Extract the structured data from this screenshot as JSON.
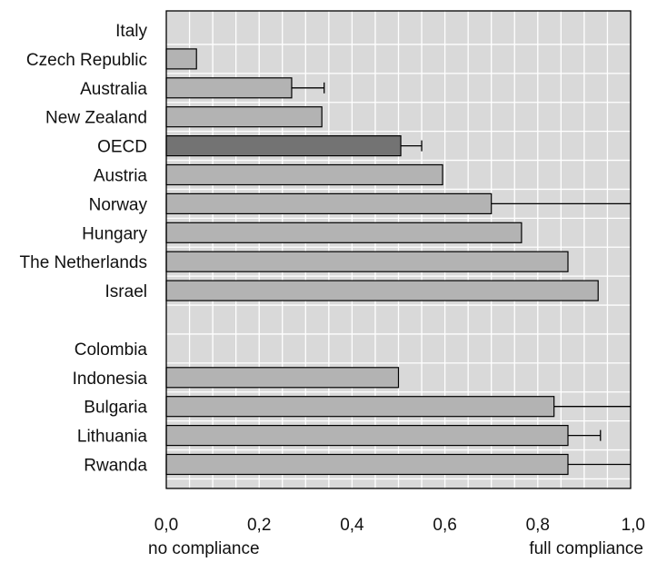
{
  "chart_data": {
    "type": "bar",
    "orientation": "horizontal",
    "categories": [
      "Italy",
      "Czech Republic",
      "Australia",
      "New Zealand",
      "OECD",
      "Austria",
      "Norway",
      "Hungary",
      "The Netherlands",
      "Israel",
      "",
      "Colombia",
      "Indonesia",
      "Bulgaria",
      "Lithuania",
      "Rwanda"
    ],
    "values": [
      0,
      0.065,
      0.27,
      0.335,
      0.505,
      0.595,
      0.7,
      0.765,
      0.865,
      0.93,
      null,
      0,
      0.5,
      0.835,
      0.865,
      0.865
    ],
    "error_upper": [
      null,
      null,
      0.34,
      null,
      0.55,
      null,
      1.0,
      null,
      null,
      null,
      null,
      null,
      null,
      1.0,
      0.935,
      1.0
    ],
    "highlight": "OECD",
    "xlim": [
      0,
      1.0
    ],
    "xticks": [
      "0,0",
      "0,2",
      "0,4",
      "0,6",
      "0,8",
      "1,0"
    ],
    "xtick_values": [
      0,
      0.2,
      0.4,
      0.6,
      0.8,
      1.0
    ],
    "x_min_note": "no compliance",
    "x_max_note": "full compliance",
    "grid": true,
    "colors": {
      "plot_bg": "#d9d9d9",
      "grid": "#ffffff",
      "bar": "#b3b3b3",
      "bar_highlight": "#737373",
      "bar_stroke": "#000000",
      "frame": "#000000"
    }
  }
}
